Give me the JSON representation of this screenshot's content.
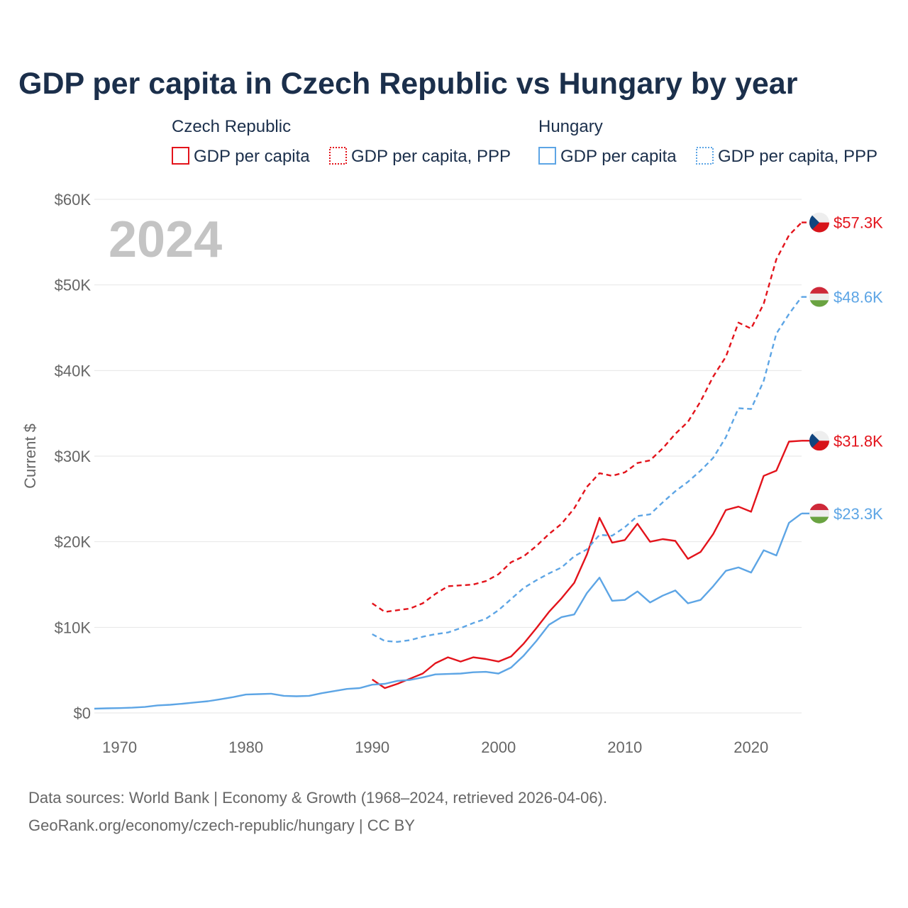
{
  "title": "GDP per capita in Czech Republic vs Hungary by year",
  "legend": {
    "groups": [
      {
        "name": "Czech Republic",
        "color": "#e3131b",
        "items": [
          {
            "label": "GDP per capita",
            "style": "solid"
          },
          {
            "label": "GDP per capita, PPP",
            "style": "dashed"
          }
        ]
      },
      {
        "name": "Hungary",
        "color": "#5da5e5",
        "items": [
          {
            "label": "GDP per capita",
            "style": "solid"
          },
          {
            "label": "GDP per capita, PPP",
            "style": "dashed"
          }
        ]
      }
    ]
  },
  "year_label": "2024",
  "source_lines": [
    "Data sources: World Bank | Economy & Growth (1968–2024, retrieved 2026-04-06).",
    "GeoRank.org/economy/czech-republic/hungary | CC BY"
  ],
  "chart_data": {
    "type": "line",
    "ylabel": "Current $",
    "xlim": [
      1968,
      2024
    ],
    "ylim": [
      0,
      60000
    ],
    "y_ticks": [
      {
        "value": 0,
        "label": "$0"
      },
      {
        "value": 10000,
        "label": "$10K"
      },
      {
        "value": 20000,
        "label": "$20K"
      },
      {
        "value": 30000,
        "label": "$30K"
      },
      {
        "value": 40000,
        "label": "$40K"
      },
      {
        "value": 50000,
        "label": "$50K"
      },
      {
        "value": 60000,
        "label": "$60K"
      }
    ],
    "x_ticks": [
      {
        "value": 1970,
        "label": "1970"
      },
      {
        "value": 1980,
        "label": "1980"
      },
      {
        "value": 1990,
        "label": "1990"
      },
      {
        "value": 2000,
        "label": "2000"
      },
      {
        "value": 2010,
        "label": "2010"
      },
      {
        "value": 2020,
        "label": "2020"
      }
    ],
    "grid": true,
    "series": [
      {
        "id": "cz-gdp",
        "name": "Czech Republic GDP per capita",
        "country": "Czech Republic",
        "color": "#e3131b",
        "style": "solid",
        "x": [
          1990,
          1991,
          1992,
          1993,
          1994,
          1995,
          1996,
          1997,
          1998,
          1999,
          2000,
          2001,
          2002,
          2003,
          2004,
          2005,
          2006,
          2007,
          2008,
          2009,
          2010,
          2011,
          2012,
          2013,
          2014,
          2015,
          2016,
          2017,
          2018,
          2019,
          2020,
          2021,
          2022,
          2023,
          2024
        ],
        "values": [
          3900,
          2900,
          3400,
          4000,
          4600,
          5800,
          6500,
          6000,
          6500,
          6300,
          6000,
          6600,
          8100,
          9900,
          11800,
          13400,
          15200,
          18500,
          22800,
          19900,
          20200,
          22100,
          20000,
          20300,
          20100,
          18000,
          18800,
          20900,
          23700,
          24100,
          23500,
          27700,
          28300,
          31700,
          31800
        ],
        "end_label": "$31.8K"
      },
      {
        "id": "cz-ppp",
        "name": "Czech Republic GDP per capita, PPP",
        "country": "Czech Republic",
        "color": "#e3131b",
        "style": "dashed",
        "x": [
          1990,
          1991,
          1992,
          1993,
          1994,
          1995,
          1996,
          1997,
          1998,
          1999,
          2000,
          2001,
          2002,
          2003,
          2004,
          2005,
          2006,
          2007,
          2008,
          2009,
          2010,
          2011,
          2012,
          2013,
          2014,
          2015,
          2016,
          2017,
          2018,
          2019,
          2020,
          2021,
          2022,
          2023,
          2024
        ],
        "values": [
          12800,
          11800,
          12000,
          12200,
          12800,
          13900,
          14800,
          14900,
          15000,
          15400,
          16200,
          17600,
          18300,
          19500,
          20900,
          22100,
          23900,
          26400,
          28000,
          27700,
          28100,
          29200,
          29500,
          30900,
          32600,
          34000,
          36400,
          39300,
          41600,
          45600,
          44900,
          47800,
          53000,
          55800,
          57300
        ],
        "end_label": "$57.3K"
      },
      {
        "id": "hu-gdp",
        "name": "Hungary GDP per capita",
        "country": "Hungary",
        "color": "#5da5e5",
        "style": "solid",
        "x": [
          1968,
          1969,
          1970,
          1971,
          1972,
          1973,
          1974,
          1975,
          1976,
          1977,
          1978,
          1979,
          1980,
          1981,
          1982,
          1983,
          1984,
          1985,
          1986,
          1987,
          1988,
          1989,
          1990,
          1991,
          1992,
          1993,
          1994,
          1995,
          1996,
          1997,
          1998,
          1999,
          2000,
          2001,
          2002,
          2003,
          2004,
          2005,
          2006,
          2007,
          2008,
          2009,
          2010,
          2011,
          2012,
          2013,
          2014,
          2015,
          2016,
          2017,
          2018,
          2019,
          2020,
          2021,
          2022,
          2023,
          2024
        ],
        "values": [
          500,
          540,
          560,
          610,
          700,
          880,
          950,
          1080,
          1230,
          1370,
          1600,
          1850,
          2150,
          2200,
          2250,
          2000,
          1950,
          2000,
          2300,
          2550,
          2800,
          2900,
          3300,
          3400,
          3750,
          3850,
          4150,
          4500,
          4550,
          4600,
          4750,
          4800,
          4600,
          5300,
          6700,
          8400,
          10300,
          11200,
          11500,
          14000,
          15800,
          13100,
          13200,
          14200,
          12900,
          13700,
          14300,
          12800,
          13200,
          14800,
          16600,
          17000,
          16400,
          19000,
          18400,
          22200,
          23300
        ],
        "end_label": "$23.3K"
      },
      {
        "id": "hu-ppp",
        "name": "Hungary GDP per capita, PPP",
        "country": "Hungary",
        "color": "#5da5e5",
        "style": "dashed",
        "x": [
          1990,
          1991,
          1992,
          1993,
          1994,
          1995,
          1996,
          1997,
          1998,
          1999,
          2000,
          2001,
          2002,
          2003,
          2004,
          2005,
          2006,
          2007,
          2008,
          2009,
          2010,
          2011,
          2012,
          2013,
          2014,
          2015,
          2016,
          2017,
          2018,
          2019,
          2020,
          2021,
          2022,
          2023,
          2024
        ],
        "values": [
          9200,
          8400,
          8300,
          8500,
          8900,
          9200,
          9400,
          9900,
          10500,
          11000,
          12000,
          13300,
          14600,
          15500,
          16300,
          17000,
          18300,
          19100,
          20800,
          20700,
          21700,
          23000,
          23200,
          24600,
          25900,
          27000,
          28300,
          29800,
          32200,
          35600,
          35500,
          38800,
          44300,
          46600,
          48600
        ],
        "end_label": "$48.6K"
      }
    ]
  }
}
